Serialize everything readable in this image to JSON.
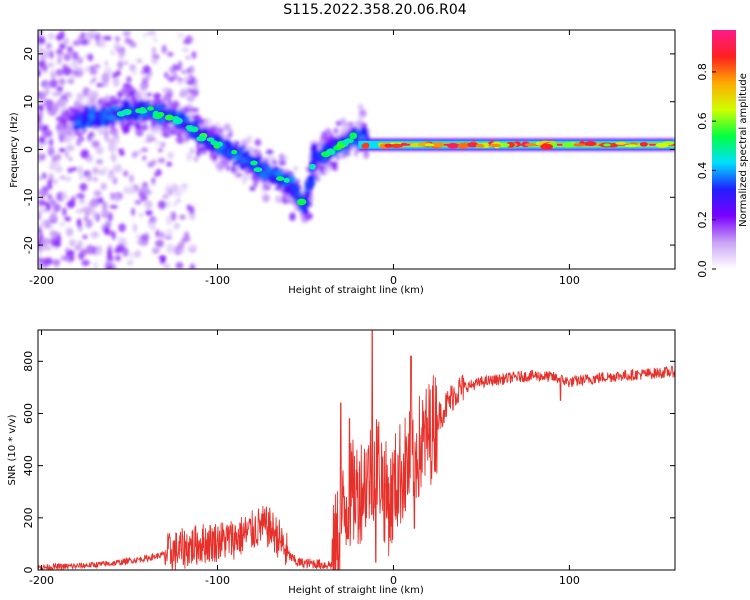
{
  "title": "S115.2022.358.20.06.R04",
  "colors": {
    "snr_line": "#e8302a",
    "frame": "#000000",
    "background": "#ffffff"
  },
  "colorbar": {
    "label": "Normalized spectral amplitude",
    "ticks": [
      "0.0",
      "0.2",
      "0.4",
      "0.6",
      "0.8"
    ],
    "tick_values": [
      0.0,
      0.2,
      0.4,
      0.6,
      0.8
    ],
    "range": [
      0.0,
      0.97
    ],
    "palette": [
      "#ffffff",
      "#c9a3f5",
      "#7a00ff",
      "#2020ff",
      "#00e0ff",
      "#00ff40",
      "#d0ff00",
      "#ffaa00",
      "#ff2020",
      "#ff1a8c"
    ]
  },
  "chart_data": [
    {
      "type": "heatmap",
      "title": "",
      "xlabel": "Height of straight line (km)",
      "ylabel": "Frequency (Hz)",
      "xlim": [
        -202,
        160
      ],
      "ylim": [
        -25,
        25
      ],
      "xticks": [
        -200,
        -100,
        0,
        100
      ],
      "yticks": [
        -20,
        -10,
        0,
        10,
        20
      ],
      "ridge": {
        "x": [
          -180,
          -170,
          -160,
          -150,
          -140,
          -130,
          -120,
          -110,
          -100,
          -90,
          -80,
          -70,
          -60,
          -55,
          -50,
          -45,
          -40,
          -35,
          -30,
          -25,
          -20,
          -15,
          -10,
          0,
          20,
          40,
          60,
          80,
          100,
          120,
          140,
          160
        ],
        "frequency": [
          6,
          7,
          7,
          8,
          8,
          7,
          6,
          3,
          1,
          -1,
          -3,
          -5,
          -7,
          -9,
          -12,
          -2,
          -1,
          0,
          1,
          2,
          3,
          2,
          1,
          1,
          1,
          1,
          1,
          1,
          1,
          1,
          1,
          1
        ]
      },
      "peak_band": {
        "x_start": -20,
        "x_end": 160,
        "frequency": 1,
        "amplitude": 0.95
      }
    },
    {
      "type": "line",
      "title": "",
      "xlabel": "Height of straight line (km)",
      "ylabel": "SNR (10 * v/v)",
      "xlim": [
        -202,
        160
      ],
      "ylim": [
        0,
        920
      ],
      "xticks": [
        -200,
        -100,
        0,
        100
      ],
      "yticks": [
        0,
        200,
        400,
        600,
        800
      ],
      "series": [
        {
          "x": [
            -200,
            -180,
            -160,
            -140,
            -130,
            -120,
            -110,
            -100,
            -90,
            -80,
            -75,
            -70,
            -65,
            -60,
            -55,
            -50,
            -45,
            -40,
            -35,
            -32,
            -30,
            -28,
            -25,
            -22,
            -20,
            -15,
            -12,
            -10,
            -8,
            -5,
            -2,
            0,
            2,
            5,
            8,
            10,
            12,
            15,
            20,
            25,
            30,
            35,
            40,
            50,
            60,
            70,
            80,
            90,
            95,
            100,
            110,
            120,
            130,
            140,
            150,
            160
          ],
          "values": [
            10,
            15,
            25,
            45,
            60,
            80,
            100,
            110,
            120,
            150,
            170,
            160,
            120,
            60,
            30,
            25,
            25,
            20,
            20,
            120,
            180,
            220,
            280,
            300,
            300,
            350,
            380,
            420,
            400,
            300,
            250,
            300,
            350,
            380,
            400,
            420,
            450,
            470,
            520,
            580,
            630,
            680,
            700,
            720,
            730,
            740,
            745,
            740,
            730,
            720,
            730,
            740,
            745,
            750,
            755,
            760
          ],
          "spikes": [
            [
              -30,
              640
            ],
            [
              -25,
              580
            ],
            [
              -12,
              920
            ],
            [
              -10,
              30
            ],
            [
              10,
              820
            ],
            [
              12,
              160
            ],
            [
              95,
              650
            ]
          ]
        }
      ]
    }
  ]
}
